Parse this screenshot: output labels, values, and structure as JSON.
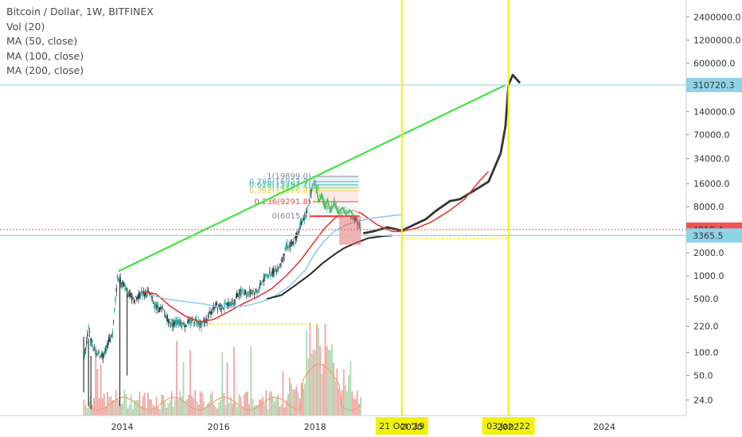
{
  "chart_data": {
    "type": "line",
    "title": "Bitcoin / Dollar, 1W, BITFINEX",
    "indicators": [
      "Vol (20)",
      "MA (50, close)",
      "MA (100, close)",
      "MA (200, close)"
    ],
    "y_scale": "log",
    "ylim": [
      15,
      4000000
    ],
    "xlim": [
      2013.0,
      2025.7
    ],
    "y_ticks": [
      "2400000.0",
      "1200000.0",
      "600000.0",
      "300000.0",
      "140000.0",
      "70000.0",
      "34000.0",
      "16000.0",
      "8000.0",
      "4000.0",
      "2000.0",
      "1000.0",
      "500.0",
      "220.0",
      "100.0",
      "50.0",
      "24.0"
    ],
    "x_ticks": [
      "2014",
      "2016",
      "2018",
      "2020",
      "2022",
      "2024"
    ],
    "price_labels": [
      {
        "text": "310720.3",
        "value": 310720.3,
        "color": "#8fd3e6"
      },
      {
        "text": "4010.4",
        "value": 4010.4,
        "color": "#ef5350"
      },
      {
        "text": "3365.5",
        "value": 3365.5,
        "color": "#8fd3e6"
      }
    ],
    "date_markers": [
      {
        "text": "21 Oct '19",
        "x": 2019.8
      },
      {
        "text": "03 Jan '22",
        "x": 2022.01
      }
    ],
    "fib_levels": [
      {
        "text": "1(19899.0)",
        "value": 19899.0,
        "color": "#7f8c8d"
      },
      {
        "text": "0.786(16927.7)",
        "value": 16927.7,
        "color": "#5dade2"
      },
      {
        "text": "0.618(15397.7)",
        "value": 15397.7,
        "color": "#45b39d"
      },
      {
        "text": "0.5(14121.9)",
        "value": 14121.9,
        "color": "#58d68d"
      },
      {
        "text": "0.382(12976.8)",
        "value": 12976.8,
        "color": "#f4d03f"
      },
      {
        "text": "0.236(9291.8)",
        "value": 9291.8,
        "color": "#e74c3c"
      },
      {
        "text": "0(6015.6)",
        "value": 6015.6,
        "color": "#7f8c8d"
      }
    ],
    "trendline": [
      [
        2013.92,
        1150
      ],
      [
        2021.95,
        310720
      ]
    ],
    "series": [
      {
        "name": "price",
        "color": "#1b1b1b",
        "values": [
          [
            2013.2,
            80
          ],
          [
            2013.3,
            200
          ],
          [
            2013.4,
            110
          ],
          [
            2013.6,
            90
          ],
          [
            2013.8,
            180
          ],
          [
            2013.9,
            950
          ],
          [
            2014.0,
            850
          ],
          [
            2014.1,
            620
          ],
          [
            2014.25,
            480
          ],
          [
            2014.4,
            600
          ],
          [
            2014.55,
            590
          ],
          [
            2014.7,
            400
          ],
          [
            2014.85,
            350
          ],
          [
            2015.0,
            240
          ],
          [
            2015.15,
            250
          ],
          [
            2015.3,
            230
          ],
          [
            2015.5,
            270
          ],
          [
            2015.65,
            230
          ],
          [
            2015.8,
            300
          ],
          [
            2015.95,
            420
          ],
          [
            2016.1,
            400
          ],
          [
            2016.3,
            450
          ],
          [
            2016.45,
            650
          ],
          [
            2016.6,
            600
          ],
          [
            2016.8,
            640
          ],
          [
            2016.95,
            950
          ],
          [
            2017.1,
            1100
          ],
          [
            2017.25,
            1300
          ],
          [
            2017.4,
            2400
          ],
          [
            2017.55,
            2700
          ],
          [
            2017.7,
            4600
          ],
          [
            2017.85,
            7500
          ],
          [
            2017.95,
            17000
          ],
          [
            2018.05,
            14000
          ],
          [
            2018.12,
            11000
          ],
          [
            2018.2,
            8500
          ],
          [
            2018.3,
            7000
          ],
          [
            2018.4,
            9500
          ],
          [
            2018.5,
            6500
          ],
          [
            2018.6,
            7500
          ],
          [
            2018.7,
            6500
          ],
          [
            2018.85,
            5500
          ],
          [
            2018.95,
            4010
          ]
        ]
      },
      {
        "name": "projection",
        "color": "#333333",
        "values": [
          [
            2019.0,
            3600
          ],
          [
            2019.2,
            3800
          ],
          [
            2019.5,
            4300
          ],
          [
            2019.8,
            3900
          ],
          [
            2020.1,
            4800
          ],
          [
            2020.3,
            5500
          ],
          [
            2020.5,
            7000
          ],
          [
            2020.8,
            9500
          ],
          [
            2021.0,
            10000
          ],
          [
            2021.3,
            13000
          ],
          [
            2021.6,
            17000
          ],
          [
            2021.85,
            40000
          ],
          [
            2021.95,
            90000
          ],
          [
            2022.01,
            310720
          ],
          [
            2022.1,
            420000
          ],
          [
            2022.25,
            330000
          ]
        ]
      },
      {
        "name": "MA (50, close)",
        "color": "#e53935",
        "values": [
          [
            2014.45,
            620
          ],
          [
            2014.7,
            580
          ],
          [
            2015.0,
            400
          ],
          [
            2015.3,
            300
          ],
          [
            2015.6,
            250
          ],
          [
            2015.9,
            270
          ],
          [
            2016.2,
            340
          ],
          [
            2016.5,
            430
          ],
          [
            2016.8,
            530
          ],
          [
            2017.1,
            680
          ],
          [
            2017.4,
            1000
          ],
          [
            2017.7,
            1600
          ],
          [
            2017.95,
            2600
          ],
          [
            2018.2,
            4200
          ],
          [
            2018.4,
            5600
          ],
          [
            2018.6,
            6800
          ],
          [
            2018.8,
            7100
          ],
          [
            2018.95,
            6600
          ],
          [
            2019.3,
            4600
          ],
          [
            2019.6,
            3800
          ],
          [
            2019.8,
            3800
          ],
          [
            2020.1,
            4200
          ],
          [
            2020.4,
            5000
          ],
          [
            2020.8,
            7200
          ],
          [
            2021.1,
            10000
          ],
          [
            2021.4,
            17000
          ],
          [
            2021.6,
            23000
          ]
        ]
      },
      {
        "name": "MA (100, close)",
        "color": "#81c7e8",
        "values": [
          [
            2014.6,
            560
          ],
          [
            2014.9,
            500
          ],
          [
            2015.3,
            460
          ],
          [
            2015.7,
            430
          ],
          [
            2016.0,
            390
          ],
          [
            2016.3,
            390
          ],
          [
            2016.6,
            410
          ],
          [
            2016.9,
            460
          ],
          [
            2017.2,
            560
          ],
          [
            2017.5,
            760
          ],
          [
            2017.8,
            1200
          ],
          [
            2018.0,
            2000
          ],
          [
            2018.2,
            2900
          ],
          [
            2018.4,
            3800
          ],
          [
            2018.6,
            4500
          ],
          [
            2018.8,
            5000
          ],
          [
            2019.2,
            5700
          ],
          [
            2019.6,
            6100
          ],
          [
            2019.8,
            6300
          ]
        ]
      },
      {
        "name": "MA (200, close)",
        "color": "#2b2b2b",
        "values": [
          [
            2017.0,
            500
          ],
          [
            2017.3,
            560
          ],
          [
            2017.6,
            760
          ],
          [
            2017.9,
            1050
          ],
          [
            2018.15,
            1450
          ],
          [
            2018.4,
            1900
          ],
          [
            2018.6,
            2300
          ],
          [
            2018.85,
            2700
          ],
          [
            2019.1,
            3100
          ],
          [
            2019.4,
            3300
          ],
          [
            2019.6,
            3365
          ]
        ]
      }
    ]
  }
}
